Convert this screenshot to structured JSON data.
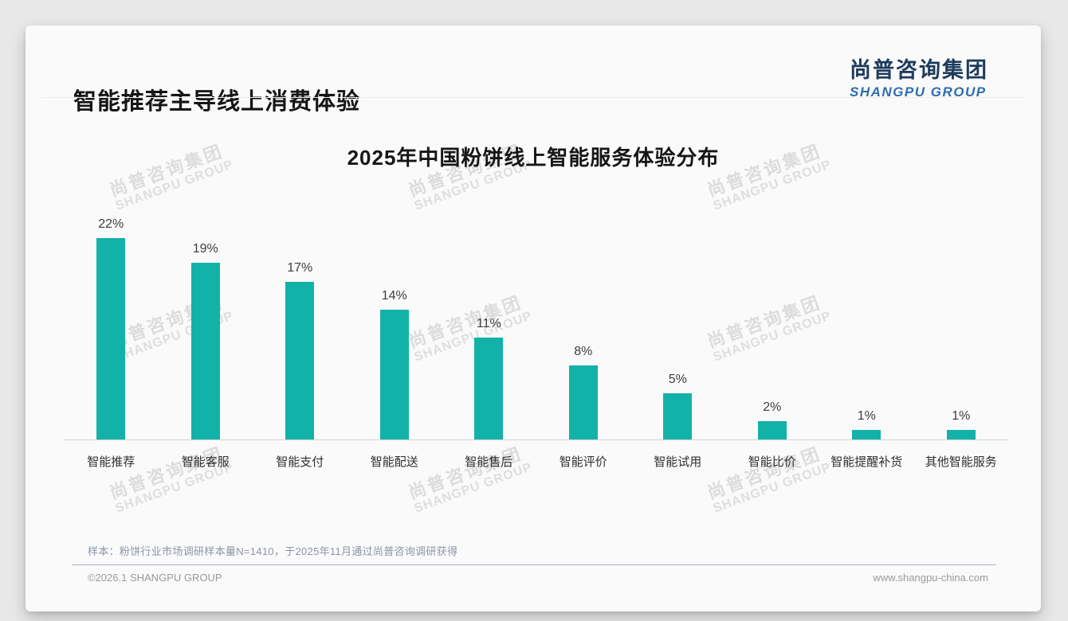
{
  "header": {
    "title": "智能推荐主导线上消费体验"
  },
  "logo": {
    "cn": "尚普咨询集团",
    "en": "SHANGPU GROUP"
  },
  "watermark": {
    "cn": "尚普咨询集团",
    "en": "SHANGPU GROUP"
  },
  "chart_data": {
    "type": "bar",
    "title": "2025年中国粉饼线上智能服务体验分布",
    "categories": [
      "智能推荐",
      "智能客服",
      "智能支付",
      "智能配送",
      "智能售后",
      "智能评价",
      "智能试用",
      "智能比价",
      "智能提醒补货",
      "其他智能服务"
    ],
    "values": [
      22,
      19,
      17,
      14,
      11,
      8,
      5,
      2,
      1,
      1
    ],
    "data_labels": [
      "22%",
      "19%",
      "17%",
      "14%",
      "11%",
      "8%",
      "5%",
      "2%",
      "1%",
      "1%"
    ],
    "unit": "%",
    "xlabel": "",
    "ylabel": "",
    "ylim": [
      0,
      24
    ],
    "grid": false,
    "legend": "none",
    "bar_color": "#12b2a9"
  },
  "footnote": "样本：粉饼行业市场调研样本量N=1410，于2025年11月通过尚普咨询调研获得",
  "footer": {
    "left": "©2026.1 SHANGPU GROUP",
    "right": "www.shangpu-china.com"
  },
  "colors": {
    "bar": "#12b2a9",
    "logo_cn": "#1e3b5d",
    "logo_en": "#2e6db3",
    "card_bg": "#fafafa",
    "page_bg": "#e8e8e8",
    "axis_line": "#d4d4d4",
    "footer_divider": "#a8b2c2",
    "watermark": "#dcdcdc"
  }
}
